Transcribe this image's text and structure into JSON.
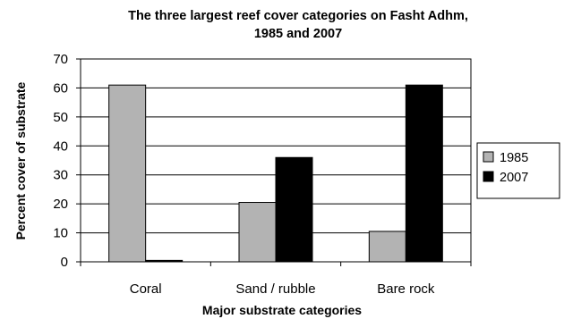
{
  "chart_data": {
    "type": "bar",
    "title": "The three largest reef cover categories on Fasht Adhm, 1985 and 2007",
    "title_lines": [
      "The three largest reef cover categories on Fasht Adhm,",
      "1985 and 2007"
    ],
    "xlabel": "Major substrate categories",
    "ylabel": "Percent cover of substrate",
    "categories": [
      "Coral",
      "Sand / rubble",
      "Bare rock"
    ],
    "series": [
      {
        "name": "1985",
        "values": [
          61,
          20.5,
          10.5
        ],
        "color": "#b3b3b3"
      },
      {
        "name": "2007",
        "values": [
          0.5,
          36,
          61
        ],
        "color": "#000000"
      }
    ],
    "ylim": [
      0,
      70
    ],
    "yticks": [
      0,
      10,
      20,
      30,
      40,
      50,
      60,
      70
    ],
    "grid": true,
    "legend": "right"
  }
}
